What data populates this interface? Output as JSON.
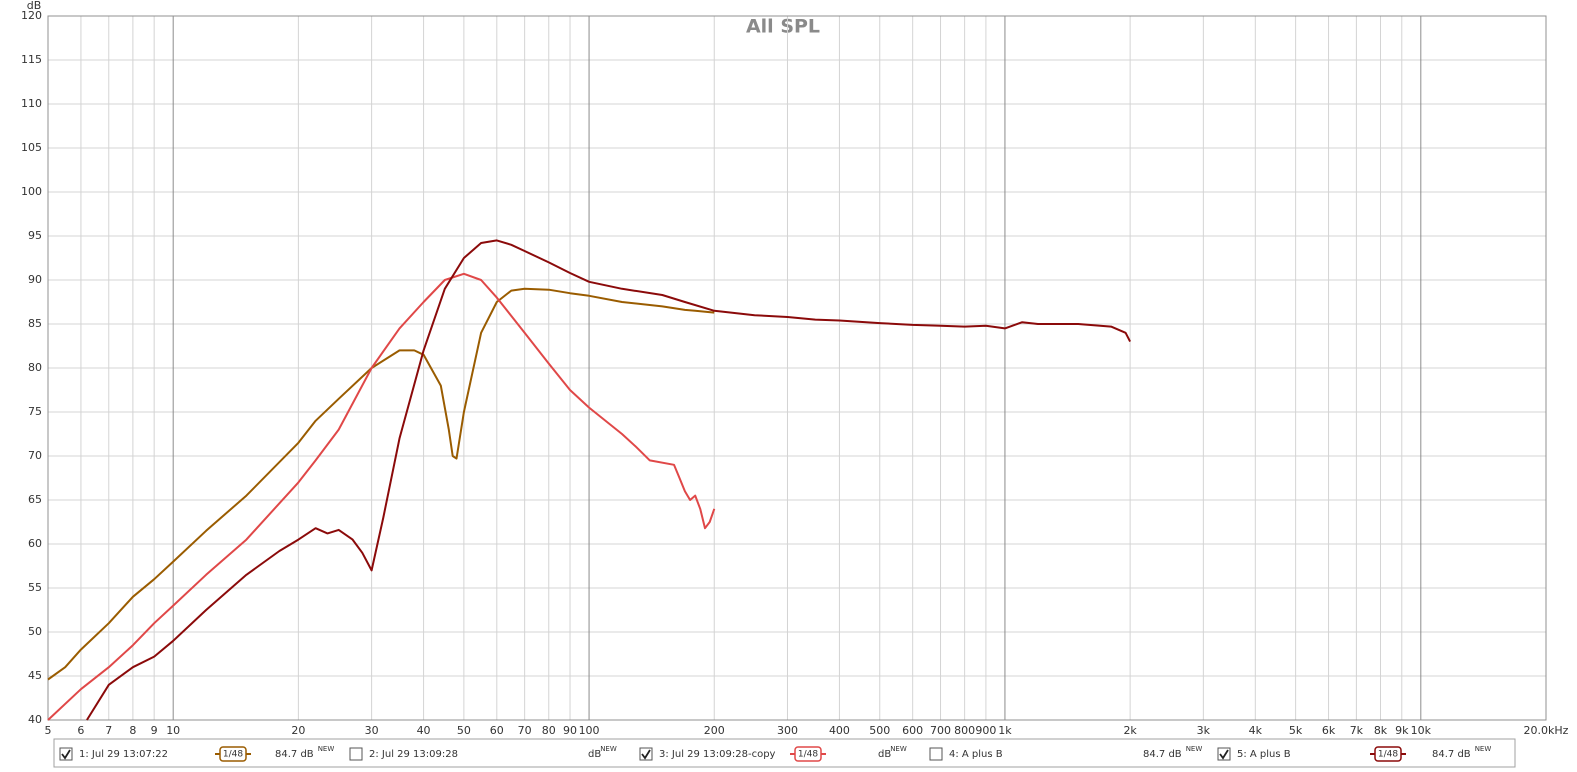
{
  "chart_data": {
    "type": "line",
    "title": "All SPL",
    "y_label": "dB",
    "log_x": true,
    "grid": true,
    "xlim": [
      5,
      20000
    ],
    "ylim": [
      40,
      120
    ],
    "yticks": [
      40,
      45,
      50,
      55,
      60,
      65,
      70,
      75,
      80,
      85,
      90,
      95,
      100,
      105,
      110,
      115,
      120
    ],
    "xticks": [
      5,
      6,
      7,
      8,
      9,
      10,
      20,
      30,
      40,
      50,
      60,
      70,
      80,
      90,
      100,
      200,
      300,
      400,
      500,
      600,
      700,
      800,
      900,
      {
        "value": 1000,
        "label": "1k"
      },
      {
        "value": 2000,
        "label": "2k"
      },
      {
        "value": 3000,
        "label": "3k"
      },
      {
        "value": 4000,
        "label": "4k"
      },
      {
        "value": 5000,
        "label": "5k"
      },
      {
        "value": 6000,
        "label": "6k"
      },
      {
        "value": 7000,
        "label": "7k"
      },
      {
        "value": 8000,
        "label": "8k"
      },
      {
        "value": 9000,
        "label": "9k"
      },
      {
        "value": 10000,
        "label": "10k"
      },
      {
        "value": 20000,
        "label": "20.0kHz"
      }
    ],
    "series": [
      {
        "name": "1: Jul 29 13:07:22",
        "color": "#9a5c00",
        "checked": true,
        "smoothing": "1/48",
        "level": "84.7 dB",
        "badge": "NEW",
        "x": [
          5,
          5.5,
          6,
          7,
          8,
          9,
          10,
          12,
          15,
          20,
          22,
          25,
          30,
          35,
          38,
          40,
          44,
          46,
          47,
          48,
          50,
          55,
          60,
          65,
          70,
          80,
          90,
          100,
          120,
          150,
          170,
          180,
          200
        ],
        "values": [
          44.6,
          46,
          48,
          51,
          54,
          56,
          58,
          61.5,
          65.5,
          71.5,
          74,
          76.5,
          80,
          82,
          82,
          81.5,
          78,
          73,
          70,
          69.7,
          75,
          84,
          87.5,
          88.8,
          89,
          88.9,
          88.5,
          88.2,
          87.5,
          87,
          86.6,
          86.5,
          86.3
        ]
      },
      {
        "name": "2: Jul 29 13:09:28",
        "color": "#2a8a8a",
        "checked": false,
        "level": "dB",
        "badge": "NEW",
        "x": [],
        "values": []
      },
      {
        "name": "3: Jul 29 13:09:28-copy",
        "color": "#e04848",
        "checked": true,
        "smoothing": "1/48",
        "level": "dB",
        "badge": "NEW",
        "x": [
          5,
          6,
          7,
          8,
          9,
          10,
          12,
          15,
          20,
          22,
          25,
          30,
          35,
          40,
          45,
          50,
          55,
          60,
          70,
          80,
          90,
          100,
          120,
          130,
          140,
          160,
          165,
          170,
          175,
          180,
          185,
          190,
          195,
          200
        ],
        "values": [
          40,
          43.5,
          46,
          48.5,
          51,
          53,
          56.5,
          60.5,
          67,
          69.5,
          73,
          80,
          84.5,
          87.5,
          90,
          90.7,
          90,
          88,
          84,
          80.5,
          77.5,
          75.5,
          72.5,
          71,
          69.5,
          69,
          67.5,
          66,
          65,
          65.5,
          64,
          61.8,
          62.5,
          64
        ]
      },
      {
        "name": "4: A plus B",
        "color": "#9933cc",
        "checked": false,
        "level": "84.7 dB",
        "badge": "NEW",
        "x": [],
        "values": []
      },
      {
        "name": "5: A plus B",
        "color": "#8b0a0a",
        "checked": true,
        "smoothing": "1/48",
        "level": "84.7 dB",
        "badge": "NEW",
        "x": [
          6.2,
          7,
          8,
          9,
          10,
          12,
          15,
          18,
          20,
          22,
          23.5,
          25,
          27,
          28.5,
          30,
          32,
          35,
          40,
          45,
          50,
          55,
          60,
          65,
          70,
          80,
          90,
          100,
          120,
          150,
          170,
          200,
          250,
          300,
          350,
          400,
          500,
          600,
          700,
          800,
          900,
          1000,
          1100,
          1200,
          1500,
          1800,
          1950,
          2000
        ],
        "values": [
          40,
          44,
          46,
          47.2,
          49,
          52.5,
          56.5,
          59.2,
          60.5,
          61.8,
          61.2,
          61.6,
          60.5,
          59,
          57,
          63,
          72,
          82,
          89,
          92.5,
          94.2,
          94.5,
          94,
          93.3,
          92,
          90.8,
          89.8,
          89,
          88.3,
          87.5,
          86.5,
          86,
          85.8,
          85.5,
          85.4,
          85.1,
          84.9,
          84.8,
          84.7,
          84.8,
          84.5,
          85.2,
          85,
          85,
          84.7,
          84,
          83
        ]
      }
    ]
  }
}
